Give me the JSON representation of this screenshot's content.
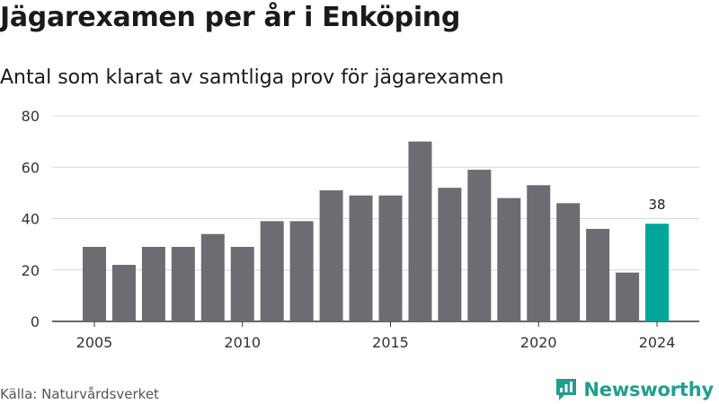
{
  "title": "Jägarexamen per år i Enköping",
  "subtitle": "Antal som klarat av samtliga prov för jägarexamen",
  "source": "Källa: Naturvårdsverket",
  "brand": {
    "name": "Newsworthy",
    "icon": "newsworthy-logo-icon",
    "color": "#1f9e8e"
  },
  "colors": {
    "bar": "#6d6c72",
    "highlight": "#00a69a",
    "grid": "#d9d9d9",
    "axis": "#333333"
  },
  "chart_data": {
    "type": "bar",
    "categories": [
      2005,
      2006,
      2007,
      2008,
      2009,
      2010,
      2011,
      2012,
      2013,
      2014,
      2015,
      2016,
      2017,
      2018,
      2019,
      2020,
      2021,
      2022,
      2023,
      2024
    ],
    "values": [
      29,
      22,
      29,
      29,
      34,
      29,
      39,
      39,
      51,
      49,
      49,
      70,
      52,
      59,
      48,
      53,
      46,
      36,
      19,
      38
    ],
    "highlight_category": 2024,
    "data_labels": [
      {
        "category": 2024,
        "label": "38"
      }
    ],
    "x_tick_labels": [
      "2005",
      "2010",
      "2015",
      "2020",
      "2024"
    ],
    "y_ticks": [
      0,
      20,
      40,
      60,
      80
    ],
    "ylim": [
      0,
      80
    ],
    "grid": true,
    "xlabel": "",
    "ylabel": ""
  }
}
